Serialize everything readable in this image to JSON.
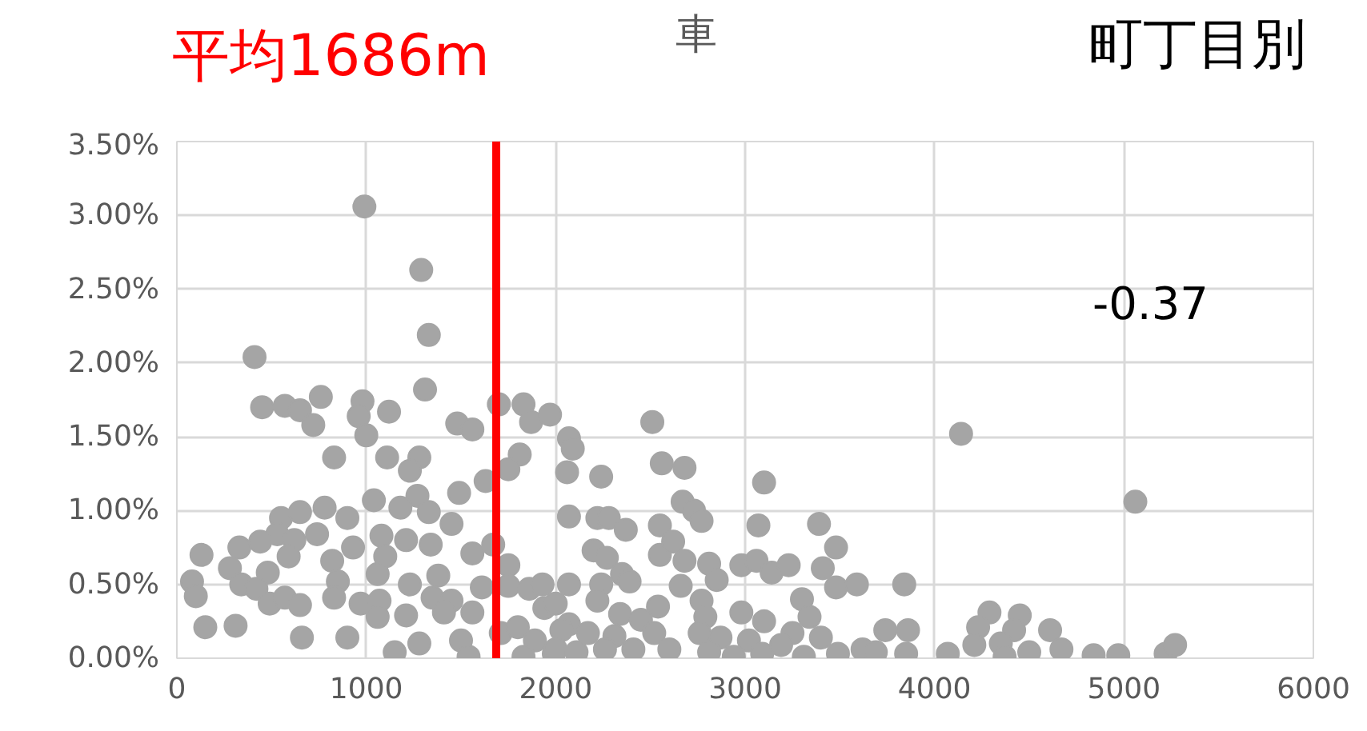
{
  "chart_data": {
    "type": "scatter",
    "marker": "circle",
    "grid": true,
    "annotations": [
      "車",
      "町丁目別",
      "-0.37"
    ],
    "xlim": [
      0,
      6000
    ],
    "xticks": [
      0,
      1000,
      2000,
      3000,
      4000,
      5000,
      6000
    ],
    "ylim": [
      0,
      3.5
    ],
    "yticks": [
      {
        "value": 0,
        "label": "0.00%"
      },
      {
        "value": 0.5,
        "label": "0.50%"
      },
      {
        "value": 1,
        "label": "1.00%"
      },
      {
        "value": 1.5,
        "label": "1.50%"
      },
      {
        "value": 2,
        "label": "2.00%"
      },
      {
        "value": 2.5,
        "label": "2.50%"
      },
      {
        "value": 3,
        "label": "3.00%"
      },
      {
        "value": 3.5,
        "label": "3.50%"
      }
    ],
    "ref_lines": [
      {
        "axis": "x",
        "value": 1686,
        "label": "平均1686m",
        "color": "#ff0000"
      }
    ],
    "series": [
      {
        "color": "#a5a5a5",
        "x": [
          990,
          1290,
          1330,
          410,
          1310,
          450,
          570,
          650,
          720,
          760,
          980,
          960,
          1000,
          1120,
          1480,
          1560,
          1700,
          1830,
          1870,
          1970,
          2070,
          830,
          1110,
          1280,
          1230,
          1810,
          1750,
          1630,
          2060,
          1490,
          1040,
          1270,
          2070,
          550,
          650,
          780,
          900,
          530,
          620,
          740,
          1180,
          1330,
          1450,
          590,
          330,
          440,
          130,
          1080,
          1100,
          1210,
          1340,
          1560,
          1670,
          930,
          820,
          80,
          100,
          280,
          480,
          340,
          420,
          490,
          570,
          650,
          850,
          830,
          1060,
          1230,
          1380,
          1610,
          1750,
          1750,
          1860,
          1930,
          2070,
          150,
          310,
          660,
          900,
          970,
          1070,
          1060,
          1210,
          1350,
          1450,
          1410,
          1560,
          1150,
          1280,
          1500,
          1540,
          1710,
          1800,
          1890,
          1830,
          1990,
          2070,
          1940,
          2090,
          2510,
          2240,
          2560,
          2680,
          2220,
          2280,
          2370,
          2670,
          2730,
          2770,
          2550,
          3100,
          3070,
          3390,
          3480,
          2200,
          2270,
          2350,
          2390,
          2550,
          2620,
          2680,
          2810,
          2850,
          2980,
          3060,
          3140,
          3230,
          3410,
          3480,
          3590,
          3840,
          2240,
          2660,
          2770,
          3300,
          2220,
          2000,
          2340,
          2540,
          2450,
          2790,
          2980,
          3100,
          3340,
          2030,
          2170,
          2310,
          2520,
          2760,
          2870,
          3020,
          3250,
          3400,
          3740,
          3860,
          2000,
          2110,
          2260,
          2410,
          2600,
          2810,
          2940,
          3090,
          3190,
          3310,
          3490,
          3620,
          3690,
          3850,
          4070,
          4140,
          5060,
          4290,
          4230,
          4450,
          4420,
          4610,
          4210,
          4350,
          4370,
          4500,
          4670,
          4840,
          4970,
          5220,
          5270
        ],
        "values": [
          3.06,
          2.63,
          2.19,
          2.04,
          1.82,
          1.7,
          1.71,
          1.68,
          1.58,
          1.77,
          1.74,
          1.64,
          1.51,
          1.67,
          1.59,
          1.55,
          1.72,
          1.72,
          1.6,
          1.65,
          1.49,
          1.36,
          1.36,
          1.36,
          1.27,
          1.38,
          1.28,
          1.2,
          1.26,
          1.12,
          1.07,
          1.1,
          0.96,
          0.95,
          0.99,
          1.02,
          0.95,
          0.84,
          0.8,
          0.84,
          1.02,
          0.99,
          0.91,
          0.69,
          0.75,
          0.79,
          0.7,
          0.83,
          0.69,
          0.8,
          0.77,
          0.71,
          0.77,
          0.75,
          0.66,
          0.52,
          0.42,
          0.61,
          0.58,
          0.5,
          0.47,
          0.37,
          0.41,
          0.36,
          0.52,
          0.41,
          0.57,
          0.5,
          0.56,
          0.48,
          0.63,
          0.49,
          0.47,
          0.5,
          0.5,
          0.21,
          0.22,
          0.14,
          0.14,
          0.37,
          0.39,
          0.28,
          0.29,
          0.41,
          0.39,
          0.31,
          0.31,
          0.04,
          0.1,
          0.12,
          0.01,
          0.17,
          0.21,
          0.12,
          0.01,
          0.03,
          0.23,
          0.34,
          1.42,
          1.6,
          1.23,
          1.32,
          1.29,
          0.95,
          0.95,
          0.87,
          1.06,
          1.0,
          0.93,
          0.9,
          1.19,
          0.9,
          0.91,
          0.75,
          0.73,
          0.68,
          0.57,
          0.52,
          0.7,
          0.79,
          0.66,
          0.64,
          0.53,
          0.63,
          0.66,
          0.58,
          0.63,
          0.61,
          0.48,
          0.5,
          0.5,
          0.5,
          0.49,
          0.39,
          0.4,
          0.39,
          0.37,
          0.3,
          0.35,
          0.26,
          0.28,
          0.31,
          0.25,
          0.28,
          0.19,
          0.17,
          0.15,
          0.17,
          0.17,
          0.14,
          0.12,
          0.17,
          0.14,
          0.19,
          0.19,
          0.06,
          0.04,
          0.06,
          0.06,
          0.06,
          0.04,
          0.01,
          0.03,
          0.09,
          0.01,
          0.03,
          0.06,
          0.04,
          0.03,
          0.03,
          1.52,
          1.06,
          0.31,
          0.21,
          0.29,
          0.19,
          0.19,
          0.09,
          0.1,
          0.01,
          0.04,
          0.06,
          0.02,
          0.02,
          0.03,
          0.09
        ]
      }
    ]
  }
}
